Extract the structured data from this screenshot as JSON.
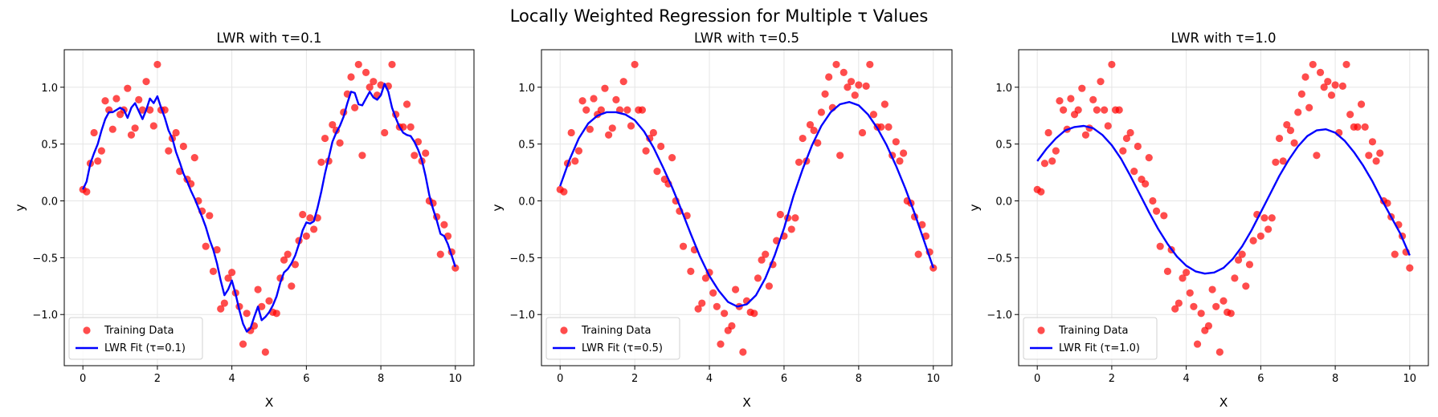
{
  "figure": {
    "title": "Locally Weighted Regression for Multiple τ Values"
  },
  "colors": {
    "training": "#ff0000",
    "fit": "#0000ff",
    "grid": "#e5e5e5",
    "axis": "#000000"
  },
  "chart_data": [
    {
      "type": "scatter",
      "title": "LWR with τ=0.1",
      "xlabel": "X",
      "ylabel": "y",
      "xlim": [
        -0.5,
        10.5
      ],
      "ylim": [
        -1.45,
        1.33
      ],
      "xticks": [
        0,
        2,
        4,
        6,
        8,
        10
      ],
      "yticks": [
        -1.0,
        -0.5,
        0.0,
        0.5,
        1.0
      ],
      "grid": true,
      "legend_position": "lower-left",
      "series": [
        {
          "name": "Training Data",
          "kind": "scatter",
          "color": "#ff0000",
          "ref": "training"
        },
        {
          "name": "LWR Fit (τ=0.1)",
          "kind": "line",
          "color": "#0000ff",
          "x": [
            0.0,
            0.1,
            0.2,
            0.3,
            0.4,
            0.5,
            0.6,
            0.7,
            0.8,
            0.9,
            1.0,
            1.1,
            1.2,
            1.3,
            1.4,
            1.5,
            1.6,
            1.7,
            1.8,
            1.9,
            2.0,
            2.1,
            2.2,
            2.3,
            2.4,
            2.5,
            2.6,
            2.7,
            2.8,
            2.9,
            3.0,
            3.1,
            3.2,
            3.3,
            3.4,
            3.5,
            3.6,
            3.7,
            3.8,
            3.9,
            4.0,
            4.1,
            4.2,
            4.3,
            4.4,
            4.5,
            4.6,
            4.7,
            4.8,
            4.9,
            5.0,
            5.1,
            5.2,
            5.3,
            5.4,
            5.5,
            5.6,
            5.7,
            5.8,
            5.9,
            6.0,
            6.1,
            6.2,
            6.3,
            6.4,
            6.5,
            6.6,
            6.7,
            6.8,
            6.9,
            7.0,
            7.1,
            7.2,
            7.3,
            7.4,
            7.5,
            7.6,
            7.7,
            7.8,
            7.9,
            8.0,
            8.1,
            8.2,
            8.3,
            8.4,
            8.5,
            8.6,
            8.7,
            8.8,
            8.9,
            9.0,
            9.1,
            9.2,
            9.3,
            9.4,
            9.5,
            9.6,
            9.7,
            9.8,
            9.9,
            10.0
          ],
          "y": [
            0.1,
            0.17,
            0.33,
            0.42,
            0.5,
            0.62,
            0.72,
            0.78,
            0.78,
            0.8,
            0.82,
            0.8,
            0.73,
            0.82,
            0.86,
            0.79,
            0.72,
            0.8,
            0.9,
            0.86,
            0.92,
            0.82,
            0.73,
            0.62,
            0.55,
            0.43,
            0.34,
            0.24,
            0.17,
            0.09,
            0.02,
            -0.06,
            -0.14,
            -0.23,
            -0.34,
            -0.43,
            -0.55,
            -0.7,
            -0.83,
            -0.78,
            -0.7,
            -0.82,
            -0.96,
            -1.08,
            -1.15,
            -1.12,
            -1.02,
            -0.93,
            -1.05,
            -1.02,
            -0.98,
            -0.92,
            -0.84,
            -0.72,
            -0.63,
            -0.6,
            -0.55,
            -0.48,
            -0.38,
            -0.26,
            -0.19,
            -0.2,
            -0.18,
            -0.06,
            0.08,
            0.24,
            0.38,
            0.52,
            0.6,
            0.66,
            0.74,
            0.86,
            0.96,
            0.95,
            0.85,
            0.84,
            0.9,
            0.96,
            0.91,
            0.89,
            0.93,
            1.03,
            0.96,
            0.82,
            0.73,
            0.65,
            0.6,
            0.58,
            0.57,
            0.52,
            0.45,
            0.36,
            0.22,
            0.05,
            -0.07,
            -0.17,
            -0.29,
            -0.31,
            -0.38,
            -0.48,
            -0.58
          ]
        }
      ]
    },
    {
      "type": "scatter",
      "title": "LWR with τ=0.5",
      "xlabel": "X",
      "ylabel": "y",
      "xlim": [
        -0.5,
        10.5
      ],
      "ylim": [
        -1.45,
        1.33
      ],
      "xticks": [
        0,
        2,
        4,
        6,
        8,
        10
      ],
      "yticks": [
        -1.0,
        -0.5,
        0.0,
        0.5,
        1.0
      ],
      "grid": true,
      "legend_position": "lower-left",
      "series": [
        {
          "name": "Training Data",
          "kind": "scatter",
          "color": "#ff0000",
          "ref": "training"
        },
        {
          "name": "LWR Fit (τ=0.5)",
          "kind": "line",
          "color": "#0000ff",
          "x": [
            0.0,
            0.25,
            0.5,
            0.75,
            1.0,
            1.25,
            1.5,
            1.75,
            2.0,
            2.25,
            2.5,
            2.75,
            3.0,
            3.25,
            3.5,
            3.75,
            4.0,
            4.25,
            4.5,
            4.75,
            5.0,
            5.25,
            5.5,
            5.75,
            6.0,
            6.25,
            6.5,
            6.75,
            7.0,
            7.25,
            7.5,
            7.75,
            8.0,
            8.25,
            8.5,
            8.75,
            9.0,
            9.25,
            9.5,
            9.75,
            10.0
          ],
          "y": [
            0.13,
            0.36,
            0.55,
            0.68,
            0.75,
            0.78,
            0.78,
            0.76,
            0.71,
            0.61,
            0.47,
            0.3,
            0.12,
            -0.08,
            -0.29,
            -0.49,
            -0.66,
            -0.79,
            -0.89,
            -0.93,
            -0.91,
            -0.83,
            -0.68,
            -0.48,
            -0.24,
            0.04,
            0.28,
            0.49,
            0.66,
            0.78,
            0.85,
            0.87,
            0.84,
            0.76,
            0.64,
            0.49,
            0.31,
            0.11,
            -0.11,
            -0.35,
            -0.59
          ]
        }
      ]
    },
    {
      "type": "scatter",
      "title": "LWR with τ=1.0",
      "xlabel": "X",
      "ylabel": "y",
      "xlim": [
        -0.5,
        10.5
      ],
      "ylim": [
        -1.45,
        1.33
      ],
      "xticks": [
        0,
        2,
        4,
        6,
        8,
        10
      ],
      "yticks": [
        -1.0,
        -0.5,
        0.0,
        0.5,
        1.0
      ],
      "grid": true,
      "legend_position": "lower-left",
      "series": [
        {
          "name": "Training Data",
          "kind": "scatter",
          "color": "#ff0000",
          "ref": "training"
        },
        {
          "name": "LWR Fit (τ=1.0)",
          "kind": "line",
          "color": "#0000ff",
          "x": [
            0.0,
            0.25,
            0.5,
            0.75,
            1.0,
            1.25,
            1.5,
            1.75,
            2.0,
            2.25,
            2.5,
            2.75,
            3.0,
            3.25,
            3.5,
            3.75,
            4.0,
            4.25,
            4.5,
            4.75,
            5.0,
            5.25,
            5.5,
            5.75,
            6.0,
            6.25,
            6.5,
            6.75,
            7.0,
            7.25,
            7.5,
            7.75,
            8.0,
            8.25,
            8.5,
            8.75,
            9.0,
            9.25,
            9.5,
            9.75,
            10.0
          ],
          "y": [
            0.35,
            0.46,
            0.55,
            0.62,
            0.65,
            0.66,
            0.64,
            0.58,
            0.49,
            0.37,
            0.22,
            0.06,
            -0.1,
            -0.25,
            -0.38,
            -0.49,
            -0.57,
            -0.62,
            -0.64,
            -0.63,
            -0.59,
            -0.51,
            -0.4,
            -0.26,
            -0.1,
            0.06,
            0.22,
            0.36,
            0.48,
            0.57,
            0.62,
            0.63,
            0.6,
            0.53,
            0.43,
            0.31,
            0.17,
            0.01,
            -0.14,
            -0.29,
            -0.48
          ]
        }
      ]
    }
  ],
  "training": {
    "x": [
      0.0,
      0.1,
      0.2,
      0.3,
      0.4,
      0.5,
      0.6,
      0.7,
      0.8,
      0.9,
      1.0,
      1.1,
      1.2,
      1.3,
      1.4,
      1.5,
      1.6,
      1.7,
      1.8,
      1.9,
      2.0,
      2.1,
      2.2,
      2.3,
      2.4,
      2.5,
      2.6,
      2.7,
      2.8,
      2.9,
      3.0,
      3.1,
      3.2,
      3.3,
      3.4,
      3.5,
      3.6,
      3.7,
      3.8,
      3.9,
      4.0,
      4.1,
      4.2,
      4.3,
      4.4,
      4.5,
      4.6,
      4.7,
      4.8,
      4.9,
      5.0,
      5.1,
      5.2,
      5.3,
      5.4,
      5.5,
      5.6,
      5.7,
      5.8,
      5.9,
      6.0,
      6.1,
      6.2,
      6.3,
      6.4,
      6.5,
      6.6,
      6.7,
      6.8,
      6.9,
      7.0,
      7.1,
      7.2,
      7.3,
      7.4,
      7.5,
      7.6,
      7.7,
      7.8,
      7.9,
      8.0,
      8.1,
      8.2,
      8.3,
      8.4,
      8.5,
      8.6,
      8.7,
      8.8,
      8.9,
      9.0,
      9.1,
      9.2,
      9.3,
      9.4,
      9.5,
      9.6,
      9.7,
      9.8,
      9.9,
      10.0
    ],
    "y": [
      0.1,
      0.08,
      0.33,
      0.6,
      0.35,
      0.44,
      0.88,
      0.8,
      0.63,
      0.9,
      0.76,
      0.8,
      0.99,
      0.58,
      0.64,
      0.89,
      0.8,
      1.05,
      0.8,
      0.66,
      1.2,
      0.8,
      0.8,
      0.44,
      0.55,
      0.6,
      0.26,
      0.48,
      0.19,
      0.15,
      0.38,
      0.0,
      -0.09,
      -0.4,
      -0.13,
      -0.62,
      -0.43,
      -0.95,
      -0.9,
      -0.68,
      -0.63,
      -0.81,
      -0.93,
      -1.26,
      -0.99,
      -1.14,
      -1.1,
      -0.78,
      -0.93,
      -1.33,
      -0.88,
      -0.98,
      -0.99,
      -0.68,
      -0.52,
      -0.47,
      -0.75,
      -0.56,
      -0.35,
      -0.12,
      -0.31,
      -0.15,
      -0.25,
      -0.15,
      0.34,
      0.55,
      0.35,
      0.67,
      0.62,
      0.51,
      0.78,
      0.94,
      1.09,
      0.82,
      1.2,
      0.4,
      1.13,
      1.0,
      1.05,
      0.93,
      1.02,
      0.6,
      1.01,
      1.2,
      0.76,
      0.65,
      0.65,
      0.85,
      0.65,
      0.4,
      0.52,
      0.35,
      0.42,
      0.0,
      -0.02,
      -0.14,
      -0.47,
      -0.21,
      -0.31,
      -0.45,
      -0.59
    ]
  }
}
